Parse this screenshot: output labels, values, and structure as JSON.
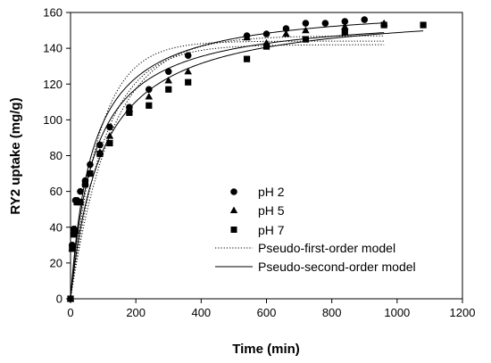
{
  "chart_data": {
    "type": "scatter",
    "title": "",
    "xlabel": "Time (min)",
    "ylabel": "RY2 uptake (mg/g)",
    "xlim": [
      0,
      1200
    ],
    "ylim": [
      0,
      160
    ],
    "xticks": [
      0,
      200,
      400,
      600,
      800,
      1000,
      1200
    ],
    "yticks": [
      0,
      20,
      40,
      60,
      80,
      100,
      120,
      140,
      160
    ],
    "grid": false,
    "legend_position": "center-right",
    "series": [
      {
        "name": "pH 2",
        "marker": "circle",
        "x": [
          0,
          5,
          10,
          15,
          20,
          30,
          45,
          60,
          90,
          120,
          180,
          240,
          300,
          360,
          540,
          600,
          660,
          720,
          780,
          840,
          900
        ],
        "y": [
          0,
          30,
          39,
          55,
          55,
          60,
          66,
          75,
          86,
          96,
          107,
          117,
          127,
          136,
          147,
          148,
          151,
          154,
          154,
          155,
          156
        ]
      },
      {
        "name": "pH 5",
        "marker": "triangle",
        "x": [
          0,
          5,
          10,
          15,
          20,
          30,
          45,
          60,
          90,
          120,
          180,
          240,
          300,
          360,
          540,
          600,
          660,
          720,
          840,
          960
        ],
        "y": [
          0,
          28,
          38,
          39,
          54,
          54,
          65,
          70,
          82,
          91,
          106,
          113,
          122,
          127,
          146,
          143,
          148,
          150,
          152,
          154
        ]
      },
      {
        "name": "pH 7",
        "marker": "square",
        "x": [
          0,
          5,
          10,
          15,
          20,
          30,
          45,
          60,
          90,
          120,
          180,
          240,
          300,
          360,
          540,
          600,
          720,
          840,
          960,
          1080
        ],
        "y": [
          0,
          28,
          36,
          38,
          54,
          54,
          64,
          70,
          81,
          87,
          104,
          108,
          117,
          121,
          134,
          141,
          145,
          149,
          153,
          153
        ]
      }
    ],
    "models": [
      {
        "name": "Pseudo-first-order model",
        "line_style": "dotted",
        "curves": [
          {
            "qe": 144,
            "k": 0.0115,
            "x_end": 960
          },
          {
            "qe": 142,
            "k": 0.0095,
            "x_end": 960
          },
          {
            "qe": 147,
            "k": 0.008,
            "x_end": 960
          }
        ]
      },
      {
        "name": "Pseudo-second-order model",
        "line_style": "solid",
        "curves": [
          {
            "qe": 165,
            "k": 9e-05,
            "x_end": 960
          },
          {
            "qe": 160,
            "k": 8.6e-05,
            "x_end": 960
          },
          {
            "qe": 163,
            "k": 6.4e-05,
            "x_end": 1080
          }
        ]
      }
    ],
    "colors": {
      "markers": "#000000",
      "axes": "#000000"
    }
  }
}
